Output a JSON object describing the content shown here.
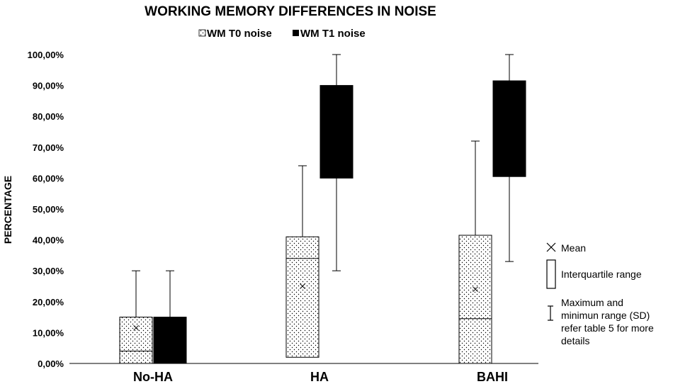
{
  "chart_data": {
    "type": "box",
    "title": "WORKING MEMORY DIFFERENCES IN NOISE",
    "xlabel": "",
    "ylabel": "PERCENTAGE",
    "ylim": [
      0,
      1
    ],
    "yticks": [
      "0,00%",
      "10,00%",
      "20,00%",
      "30,00%",
      "40,00%",
      "50,00%",
      "60,00%",
      "70,00%",
      "80,00%",
      "90,00%",
      "100,00%"
    ],
    "categories": [
      "No-HA",
      "HA",
      "BAHI"
    ],
    "legend_position": "top",
    "series": [
      {
        "name": "WM T0 noise",
        "fill": "dotted-white",
        "boxes": [
          {
            "min": 0.0,
            "q1": 0.0,
            "median": 0.04,
            "q3": 0.15,
            "max": 0.3,
            "mean": 0.115
          },
          {
            "min": 0.02,
            "q1": 0.02,
            "median": 0.34,
            "q3": 0.41,
            "max": 0.64,
            "mean": 0.25
          },
          {
            "min": 0.0,
            "q1": 0.0,
            "median": 0.145,
            "q3": 0.415,
            "max": 0.72,
            "mean": 0.24
          }
        ]
      },
      {
        "name": "WM T1 noise",
        "fill": "#000000",
        "boxes": [
          {
            "min": 0.0,
            "q1": 0.0,
            "median": 0.15,
            "q3": 0.15,
            "max": 0.3,
            "mean": null
          },
          {
            "min": 0.3,
            "q1": 0.6,
            "median": 0.9,
            "q3": 0.9,
            "max": 1.0,
            "mean": null
          },
          {
            "min": 0.33,
            "q1": 0.605,
            "median": 0.915,
            "q3": 0.915,
            "max": 1.0,
            "mean": null
          }
        ]
      }
    ],
    "key": {
      "mean": "Mean",
      "iqr": "Interquartile range",
      "range_lines": [
        "Maximum and",
        "minimun range (SD)",
        "refer table 5 for more",
        "details"
      ]
    }
  }
}
